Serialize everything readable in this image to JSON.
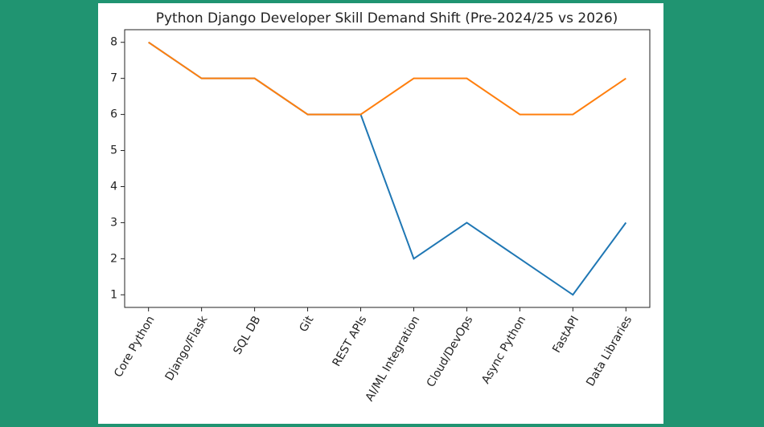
{
  "chart_data": {
    "type": "line",
    "title": "Python Django Developer Skill Demand Shift (Pre-2024/25 vs 2026)",
    "categories": [
      "Core Python",
      "Django/Flask",
      "SQL DB",
      "Git",
      "REST APIs",
      "AI/ML Integration",
      "Cloud/DevOps",
      "Async Python",
      "FastAPI",
      "Data Libraries"
    ],
    "series": [
      {
        "color": "#1f77b4",
        "values": [
          8,
          7,
          7,
          6,
          6,
          2,
          3,
          2,
          1,
          3
        ]
      },
      {
        "color": "#ff7f0e",
        "values": [
          8,
          7,
          7,
          6,
          6,
          7,
          7,
          6,
          6,
          7
        ]
      }
    ],
    "ylim": [
      0.65,
      8.35
    ],
    "yticks": [
      1,
      2,
      3,
      4,
      5,
      6,
      7,
      8
    ],
    "grid": false
  }
}
